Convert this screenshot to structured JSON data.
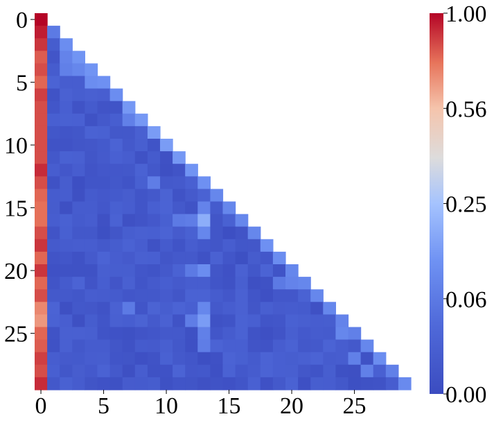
{
  "chart_data": {
    "type": "heatmap",
    "title": "",
    "xlabel": "",
    "ylabel": "",
    "size": 30,
    "mask": "upper-triangle-excluding-diagonal",
    "first_column_values": [
      1.0,
      0.95,
      0.9,
      0.82,
      0.85,
      0.8,
      0.88,
      0.85,
      0.85,
      0.85,
      0.85,
      0.85,
      0.92,
      0.85,
      0.8,
      0.78,
      0.78,
      0.85,
      0.9,
      0.8,
      0.9,
      0.8,
      0.85,
      0.72,
      0.68,
      0.8,
      0.82,
      0.88,
      0.85,
      0.92
    ],
    "diagonal_values": [
      1.0,
      0.06,
      0.12,
      0.14,
      0.14,
      0.13,
      0.12,
      0.15,
      0.15,
      0.16,
      0.16,
      0.15,
      0.14,
      0.13,
      0.1,
      0.1,
      0.1,
      0.1,
      0.13,
      0.12,
      0.1,
      0.1,
      0.1,
      0.1,
      0.09,
      0.08,
      0.1,
      0.12,
      0.08,
      0.11
    ],
    "background_range": [
      0.005,
      0.035
    ],
    "bright_cells": [
      {
        "row": 4,
        "col": 3,
        "value": 0.1
      },
      {
        "row": 4,
        "col": 2,
        "value": 0.08
      },
      {
        "row": 3,
        "col": 2,
        "value": 0.09
      },
      {
        "row": 5,
        "col": 4,
        "value": 0.12
      },
      {
        "row": 8,
        "col": 7,
        "value": 0.08
      },
      {
        "row": 13,
        "col": 9,
        "value": 0.07
      },
      {
        "row": 15,
        "col": 13,
        "value": 0.09
      },
      {
        "row": 16,
        "col": 13,
        "value": 0.2
      },
      {
        "row": 17,
        "col": 13,
        "value": 0.1
      },
      {
        "row": 16,
        "col": 12,
        "value": 0.07
      },
      {
        "row": 16,
        "col": 11,
        "value": 0.06
      },
      {
        "row": 20,
        "col": 13,
        "value": 0.12
      },
      {
        "row": 20,
        "col": 12,
        "value": 0.06
      },
      {
        "row": 21,
        "col": 20,
        "value": 0.09
      },
      {
        "row": 21,
        "col": 19,
        "value": 0.06
      },
      {
        "row": 23,
        "col": 13,
        "value": 0.1
      },
      {
        "row": 23,
        "col": 7,
        "value": 0.06
      },
      {
        "row": 24,
        "col": 13,
        "value": 0.16
      },
      {
        "row": 24,
        "col": 12,
        "value": 0.07
      },
      {
        "row": 25,
        "col": 13,
        "value": 0.08
      },
      {
        "row": 26,
        "col": 13,
        "value": 0.07
      },
      {
        "row": 25,
        "col": 24,
        "value": 0.1
      },
      {
        "row": 27,
        "col": 25,
        "value": 0.08
      },
      {
        "row": 28,
        "col": 26,
        "value": 0.08
      }
    ],
    "x_ticks": [
      "0",
      "5",
      "10",
      "15",
      "20",
      "25"
    ],
    "y_ticks": [
      "0",
      "5",
      "10",
      "15",
      "20",
      "25"
    ],
    "colormap": "coolwarm",
    "colorbar": {
      "ticks": [
        "1.00",
        "0.56",
        "0.25",
        "0.06",
        "0.00"
      ],
      "tick_values": [
        1.0,
        0.56,
        0.25,
        0.06,
        0.0
      ],
      "scale": "nonlinear"
    }
  }
}
